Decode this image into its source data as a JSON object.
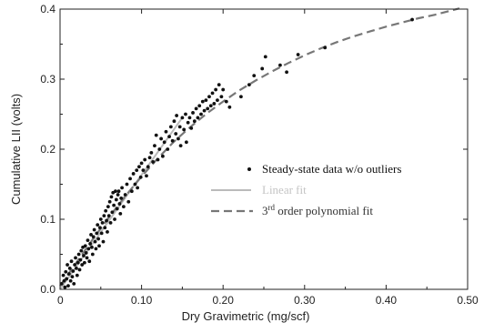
{
  "chart_data": {
    "type": "scatter",
    "xlabel": "Dry Gravimetric (mg/scf)",
    "ylabel": "Cumulative LII (volts)",
    "xlim": [
      0,
      0.5
    ],
    "ylim": [
      0,
      0.4
    ],
    "xticks": [
      0,
      0.1,
      0.2,
      0.3,
      0.4,
      0.5
    ],
    "xtick_labels": [
      "0",
      "0.10",
      "0.20",
      "0.30",
      "0.40",
      "0.50"
    ],
    "yticks": [
      0,
      0.1,
      0.2,
      0.3,
      0.4
    ],
    "ytick_labels": [
      "0.0",
      "0.1",
      "0.2",
      "0.3",
      "0.4"
    ],
    "grid": false,
    "legend_position": "middle-right",
    "colors": {
      "points": "#111111",
      "linear": "#bbbbbb",
      "poly": "#777777",
      "axis": "#222222"
    },
    "series": [
      {
        "name": "Steady-state data w/o outliers",
        "kind": "scatter",
        "points": [
          [
            0.002,
            0.008
          ],
          [
            0.004,
            0.02
          ],
          [
            0.005,
            0.012
          ],
          [
            0.006,
            0.003
          ],
          [
            0.007,
            0.025
          ],
          [
            0.008,
            0.015
          ],
          [
            0.009,
            0.035
          ],
          [
            0.01,
            0.005
          ],
          [
            0.011,
            0.022
          ],
          [
            0.012,
            0.03
          ],
          [
            0.013,
            0.012
          ],
          [
            0.014,
            0.04
          ],
          [
            0.015,
            0.018
          ],
          [
            0.016,
            0.026
          ],
          [
            0.017,
            0.008
          ],
          [
            0.018,
            0.035
          ],
          [
            0.019,
            0.045
          ],
          [
            0.02,
            0.03
          ],
          [
            0.021,
            0.02
          ],
          [
            0.022,
            0.038
          ],
          [
            0.023,
            0.05
          ],
          [
            0.024,
            0.028
          ],
          [
            0.025,
            0.042
          ],
          [
            0.026,
            0.055
          ],
          [
            0.027,
            0.035
          ],
          [
            0.028,
            0.06
          ],
          [
            0.029,
            0.048
          ],
          [
            0.03,
            0.038
          ],
          [
            0.031,
            0.062
          ],
          [
            0.032,
            0.052
          ],
          [
            0.033,
            0.045
          ],
          [
            0.034,
            0.07
          ],
          [
            0.035,
            0.058
          ],
          [
            0.036,
            0.04
          ],
          [
            0.037,
            0.065
          ],
          [
            0.038,
            0.078
          ],
          [
            0.039,
            0.06
          ],
          [
            0.04,
            0.05
          ],
          [
            0.041,
            0.075
          ],
          [
            0.042,
            0.085
          ],
          [
            0.043,
            0.068
          ],
          [
            0.044,
            0.058
          ],
          [
            0.045,
            0.08
          ],
          [
            0.046,
            0.092
          ],
          [
            0.047,
            0.072
          ],
          [
            0.048,
            0.062
          ],
          [
            0.049,
            0.088
          ],
          [
            0.05,
            0.1
          ],
          [
            0.051,
            0.08
          ],
          [
            0.052,
            0.095
          ],
          [
            0.053,
            0.068
          ],
          [
            0.054,
            0.105
          ],
          [
            0.055,
            0.088
          ],
          [
            0.056,
            0.112
          ],
          [
            0.057,
            0.098
          ],
          [
            0.058,
            0.082
          ],
          [
            0.059,
            0.118
          ],
          [
            0.06,
            0.105
          ],
          [
            0.061,
            0.125
          ],
          [
            0.062,
            0.095
          ],
          [
            0.063,
            0.132
          ],
          [
            0.064,
            0.11
          ],
          [
            0.065,
            0.138
          ],
          [
            0.066,
            0.12
          ],
          [
            0.067,
            0.1
          ],
          [
            0.068,
            0.14
          ],
          [
            0.069,
            0.128
          ],
          [
            0.07,
            0.115
          ],
          [
            0.071,
            0.135
          ],
          [
            0.072,
            0.14
          ],
          [
            0.073,
            0.122
          ],
          [
            0.074,
            0.108
          ],
          [
            0.075,
            0.13
          ],
          [
            0.076,
            0.145
          ],
          [
            0.078,
            0.118
          ],
          [
            0.08,
            0.135
          ],
          [
            0.082,
            0.15
          ],
          [
            0.084,
            0.125
          ],
          [
            0.086,
            0.158
          ],
          [
            0.088,
            0.14
          ],
          [
            0.09,
            0.165
          ],
          [
            0.092,
            0.15
          ],
          [
            0.094,
            0.17
          ],
          [
            0.095,
            0.145
          ],
          [
            0.097,
            0.175
          ],
          [
            0.099,
            0.16
          ],
          [
            0.1,
            0.18
          ],
          [
            0.102,
            0.17
          ],
          [
            0.104,
            0.185
          ],
          [
            0.106,
            0.162
          ],
          [
            0.108,
            0.175
          ],
          [
            0.11,
            0.188
          ],
          [
            0.112,
            0.195
          ],
          [
            0.114,
            0.182
          ],
          [
            0.116,
            0.205
          ],
          [
            0.118,
            0.22
          ],
          [
            0.12,
            0.185
          ],
          [
            0.122,
            0.2
          ],
          [
            0.124,
            0.215
          ],
          [
            0.126,
            0.19
          ],
          [
            0.128,
            0.21
          ],
          [
            0.13,
            0.225
          ],
          [
            0.132,
            0.2
          ],
          [
            0.134,
            0.218
          ],
          [
            0.136,
            0.232
          ],
          [
            0.138,
            0.212
          ],
          [
            0.14,
            0.24
          ],
          [
            0.142,
            0.222
          ],
          [
            0.143,
            0.248
          ],
          [
            0.145,
            0.215
          ],
          [
            0.147,
            0.232
          ],
          [
            0.148,
            0.205
          ],
          [
            0.15,
            0.245
          ],
          [
            0.152,
            0.228
          ],
          [
            0.154,
            0.25
          ],
          [
            0.155,
            0.21
          ],
          [
            0.157,
            0.238
          ],
          [
            0.159,
            0.245
          ],
          [
            0.161,
            0.23
          ],
          [
            0.163,
            0.252
          ],
          [
            0.165,
            0.24
          ],
          [
            0.167,
            0.258
          ],
          [
            0.169,
            0.245
          ],
          [
            0.171,
            0.262
          ],
          [
            0.173,
            0.25
          ],
          [
            0.175,
            0.268
          ],
          [
            0.177,
            0.255
          ],
          [
            0.179,
            0.27
          ],
          [
            0.181,
            0.258
          ],
          [
            0.183,
            0.275
          ],
          [
            0.185,
            0.262
          ],
          [
            0.187,
            0.28
          ],
          [
            0.189,
            0.265
          ],
          [
            0.191,
            0.285
          ],
          [
            0.193,
            0.27
          ],
          [
            0.195,
            0.292
          ],
          [
            0.198,
            0.275
          ],
          [
            0.2,
            0.285
          ],
          [
            0.204,
            0.268
          ],
          [
            0.208,
            0.26
          ],
          [
            0.222,
            0.275
          ],
          [
            0.232,
            0.292
          ],
          [
            0.238,
            0.305
          ],
          [
            0.248,
            0.315
          ],
          [
            0.252,
            0.332
          ],
          [
            0.27,
            0.32
          ],
          [
            0.278,
            0.31
          ],
          [
            0.292,
            0.335
          ],
          [
            0.325,
            0.345
          ],
          [
            0.432,
            0.385
          ]
        ]
      },
      {
        "name": "Linear fit",
        "kind": "line",
        "x": [
          0.0,
          0.15
        ],
        "y": [
          0.0,
          0.245
        ]
      },
      {
        "name": "3rd order polynomial fit",
        "kind": "curve",
        "x": [
          0.0,
          0.02,
          0.04,
          0.06,
          0.08,
          0.1,
          0.12,
          0.14,
          0.16,
          0.18,
          0.2,
          0.22,
          0.24,
          0.26,
          0.28,
          0.3,
          0.32,
          0.34,
          0.36,
          0.38,
          0.4,
          0.42,
          0.44,
          0.46,
          0.48,
          0.49
        ],
        "y": [
          0.005,
          0.038,
          0.071,
          0.103,
          0.133,
          0.161,
          0.187,
          0.211,
          0.232,
          0.251,
          0.268,
          0.284,
          0.298,
          0.311,
          0.323,
          0.334,
          0.344,
          0.353,
          0.361,
          0.368,
          0.375,
          0.381,
          0.387,
          0.392,
          0.398,
          0.401
        ]
      }
    ],
    "legend": [
      {
        "label": "Steady-state data w/o outliers",
        "sup": "",
        "suffix": ""
      },
      {
        "label": "Linear fit",
        "sup": "",
        "suffix": ""
      },
      {
        "label": "3",
        "sup": "rd",
        "suffix": " order polynomial fit"
      }
    ]
  }
}
